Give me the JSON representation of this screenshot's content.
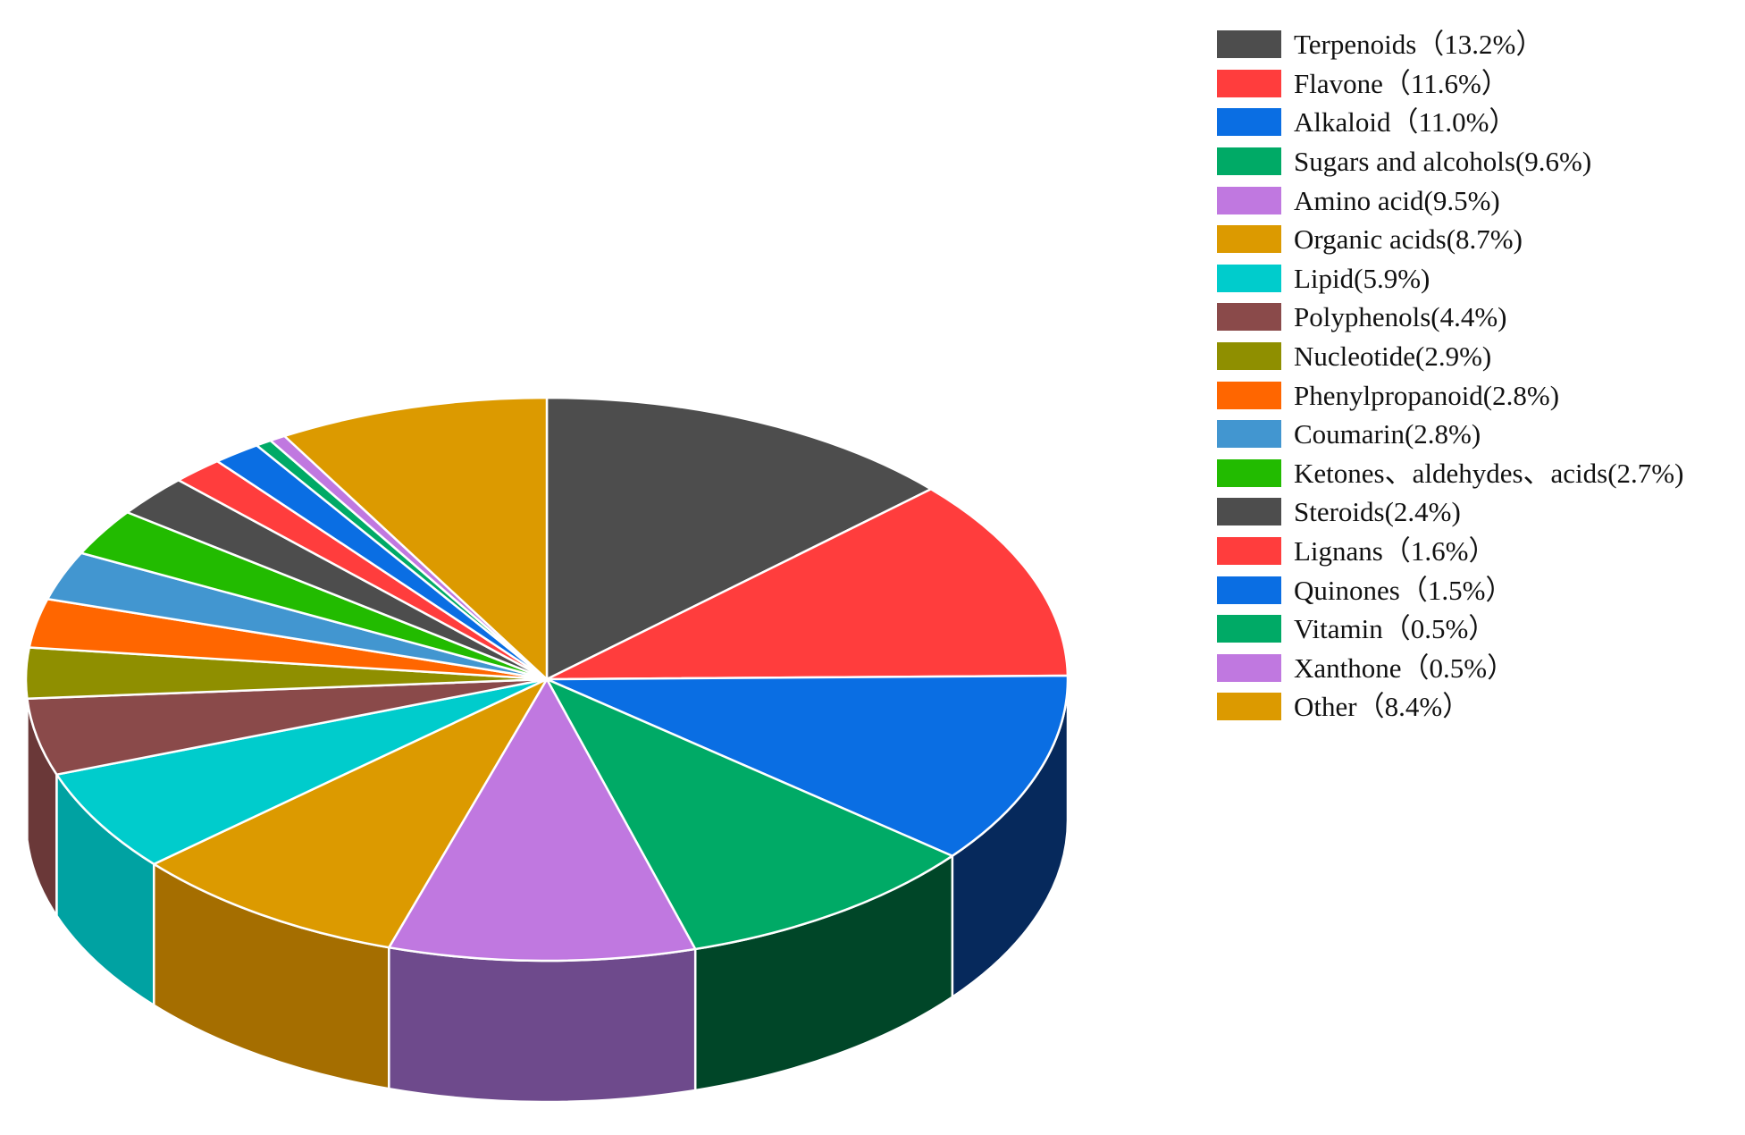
{
  "chart_data": {
    "type": "pie",
    "title": "",
    "legend_position": "right",
    "slices": [
      {
        "label": "Terpenoids（13.2%）",
        "value": 13.2,
        "color": "#4d4d4d",
        "side_color": "#333333"
      },
      {
        "label": "Flavone（11.6%）",
        "value": 11.6,
        "color": "#ff3d3d",
        "side_color": "#9e1f1f"
      },
      {
        "label": "Alkaloid（11.0%）",
        "value": 11.0,
        "color": "#0a6ee3",
        "side_color": "#06295c"
      },
      {
        "label": "Sugars and alcohols(9.6%)",
        "value": 9.6,
        "color": "#00aa66",
        "side_color": "#004628"
      },
      {
        "label": "Amino acid(9.5%)",
        "value": 9.5,
        "color": "#c078e0",
        "side_color": "#6e4a8c"
      },
      {
        "label": "Organic acids(8.7%)",
        "value": 8.7,
        "color": "#dc9a00",
        "side_color": "#a56e00"
      },
      {
        "label": "Lipid(5.9%)",
        "value": 5.9,
        "color": "#00cccc",
        "side_color": "#00a2a2"
      },
      {
        "label": "Polyphenols(4.4%)",
        "value": 4.4,
        "color": "#8a4a4a",
        "side_color": "#6a3838"
      },
      {
        "label": "Nucleotide(2.9%)",
        "value": 2.9,
        "color": "#8f8f00",
        "side_color": "#6a6a00"
      },
      {
        "label": "Phenylpropanoid(2.8%)",
        "value": 2.8,
        "color": "#ff6600",
        "side_color": "#b84800"
      },
      {
        "label": "Coumarin(2.8%)",
        "value": 2.8,
        "color": "#4296d0",
        "side_color": "#2c6a96"
      },
      {
        "label": "Ketones、aldehydes、acids(2.7%)",
        "value": 2.7,
        "color": "#22bb00",
        "side_color": "#178000"
      },
      {
        "label": "Steroids(2.4%)",
        "value": 2.4,
        "color": "#4d4d4d",
        "side_color": "#333333"
      },
      {
        "label": "Lignans（1.6%）",
        "value": 1.6,
        "color": "#ff3d3d",
        "side_color": "#9e1f1f"
      },
      {
        "label": "Quinones（1.5%）",
        "value": 1.5,
        "color": "#0a6ee3",
        "side_color": "#06295c"
      },
      {
        "label": "Vitamin（0.5%）",
        "value": 0.5,
        "color": "#00aa66",
        "side_color": "#004628"
      },
      {
        "label": "Xanthone（0.5%）",
        "value": 0.5,
        "color": "#c078e0",
        "side_color": "#6e4a8c"
      },
      {
        "label": "Other（8.4%）",
        "value": 8.4,
        "color": "#dc9a00",
        "side_color": "#a56e00"
      }
    ]
  }
}
